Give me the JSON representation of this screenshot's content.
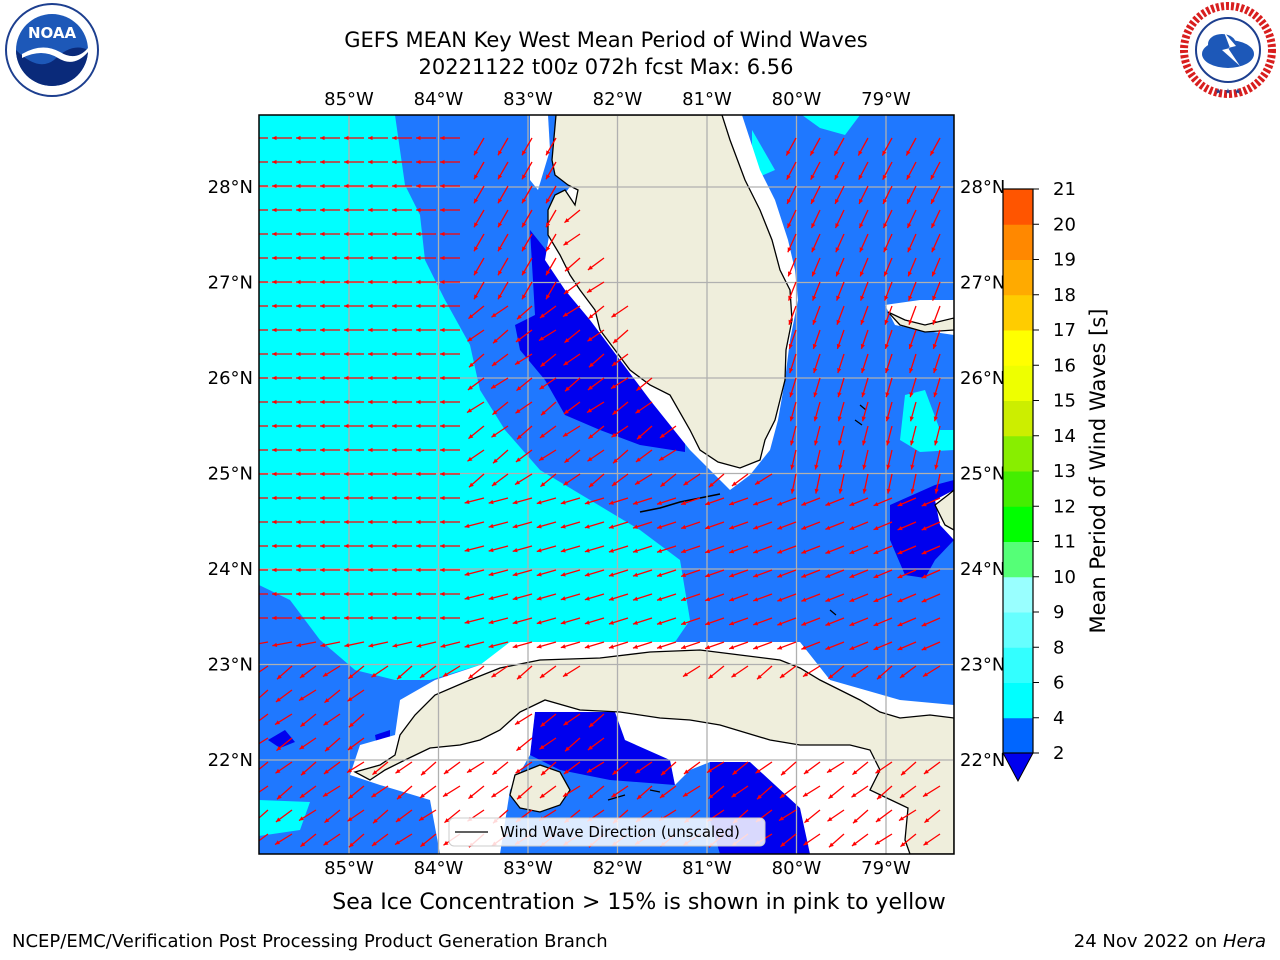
{
  "title": {
    "line1": "GEFS MEAN Key West Mean Period of Wind Waves",
    "line2": "20221122 t00z 072h fcst   Max: 6.56"
  },
  "logos": {
    "left": {
      "icon": "noaa-logo",
      "text": "NOAA",
      "ring_text": "NATIONAL OCEANIC AND ATMOSPHERIC ADMINISTRATION · U.S. DEPARTMENT OF COMMERCE"
    },
    "right": {
      "icon": "nws-logo",
      "ring_text": "NATIONAL WEATHER SERVICE"
    }
  },
  "map": {
    "lon_labels": [
      "85°W",
      "84°W",
      "83°W",
      "82°W",
      "81°W",
      "80°W",
      "79°W"
    ],
    "lat_labels": [
      "28°N",
      "27°N",
      "26°N",
      "25°N",
      "24°N",
      "23°N",
      "22°N"
    ],
    "legend_label": "Wind Wave Direction (unscaled)",
    "colors": {
      "land": "#efeedc",
      "water_dark": "#0000ee",
      "water_mid": "#1f78ff",
      "water_cyan": "#00ffff",
      "water_light": "#66ffff",
      "arrow": "#ff0000",
      "grid": "#b0b0b0"
    }
  },
  "colorbar": {
    "label": "Mean Period of Wind Waves [s]",
    "ticks": [
      "2",
      "4",
      "6",
      "8",
      "9",
      "10",
      "11",
      "12",
      "13",
      "14",
      "15",
      "16",
      "17",
      "18",
      "19",
      "20",
      "21"
    ],
    "colors": [
      "#0066ff",
      "#00ffff",
      "#33ffff",
      "#66ffff",
      "#99ffff",
      "#55ff77",
      "#00ff00",
      "#44ee00",
      "#88ee00",
      "#ccee00",
      "#eeff00",
      "#ffff00",
      "#ffcc00",
      "#ffaa00",
      "#ff8800",
      "#ff5500",
      "#ff2200",
      "#ff0000"
    ],
    "under_color": "#0000ee"
  },
  "subnote": "Sea Ice Concentration > 15% is shown in pink to yellow",
  "footer": {
    "left": "NCEP/EMC/Verification Post Processing Product Generation Branch",
    "date": "24 Nov 2022 on ",
    "machine": "Hera"
  }
}
